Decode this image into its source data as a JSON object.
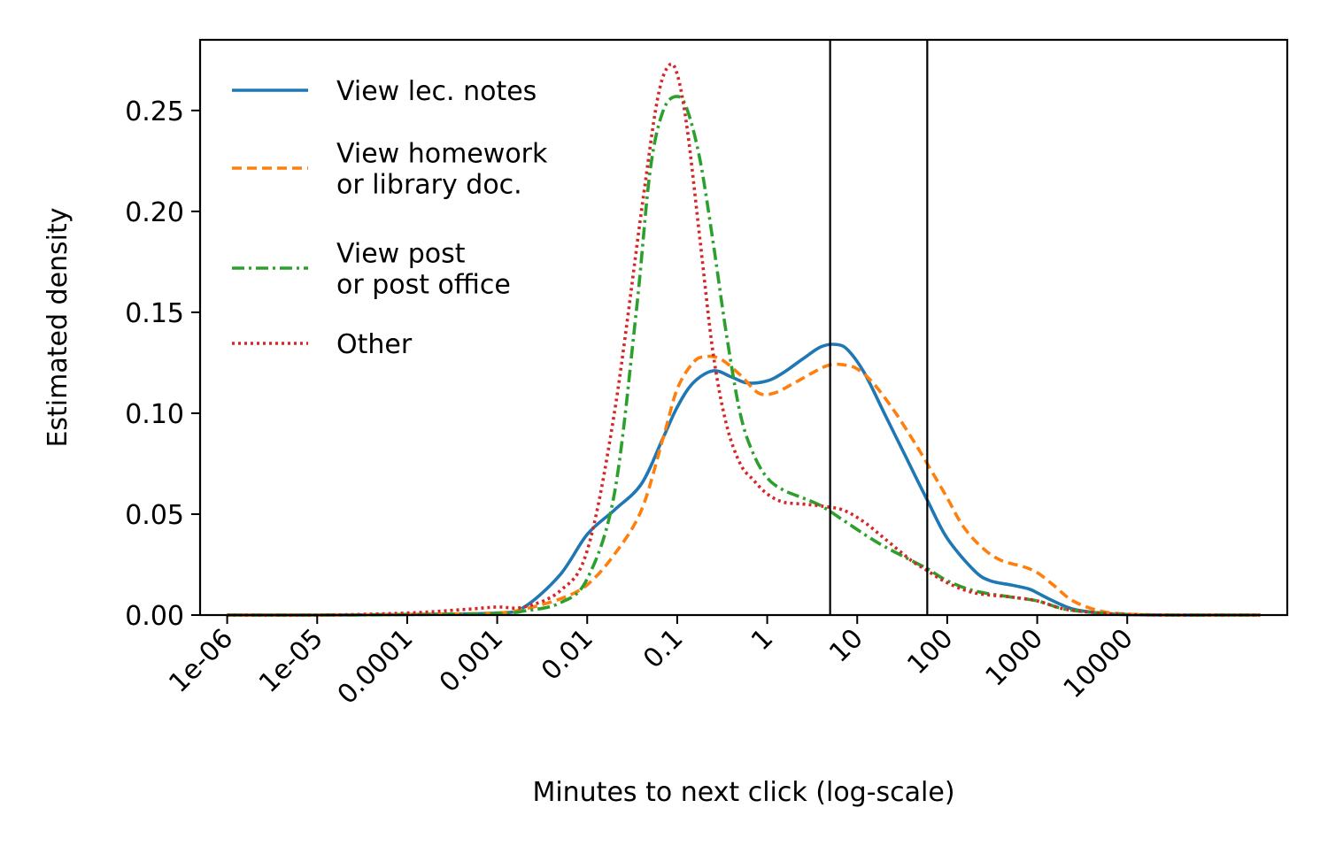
{
  "chart_data": {
    "type": "line",
    "xlabel": "Minutes to next click (log-scale)",
    "ylabel": "Estimated density",
    "x_scale": "log",
    "xlim": [
      5e-07,
      600000
    ],
    "ylim": [
      0,
      0.285
    ],
    "x_ticks": [
      {
        "value": 1e-06,
        "label": "1e-06"
      },
      {
        "value": 1e-05,
        "label": "1e-05"
      },
      {
        "value": 0.0001,
        "label": "0.0001"
      },
      {
        "value": 0.001,
        "label": "0.001"
      },
      {
        "value": 0.01,
        "label": "0.01"
      },
      {
        "value": 0.1,
        "label": "0.1"
      },
      {
        "value": 1,
        "label": "1"
      },
      {
        "value": 10,
        "label": "10"
      },
      {
        "value": 100,
        "label": "100"
      },
      {
        "value": 1000,
        "label": "1000"
      },
      {
        "value": 10000,
        "label": "10000"
      }
    ],
    "y_ticks": [
      {
        "value": 0.0,
        "label": "0.00"
      },
      {
        "value": 0.05,
        "label": "0.05"
      },
      {
        "value": 0.1,
        "label": "0.10"
      },
      {
        "value": 0.15,
        "label": "0.15"
      },
      {
        "value": 0.2,
        "label": "0.20"
      },
      {
        "value": 0.25,
        "label": "0.25"
      }
    ],
    "grid": false,
    "legend_position": "top-left",
    "vertical_lines": [
      5,
      60
    ],
    "series": [
      {
        "name": [
          "View lec. notes"
        ],
        "color": "#1f77b4",
        "dash": "solid",
        "x": [
          1e-06,
          1e-05,
          0.0001,
          0.001,
          0.002,
          0.005,
          0.01,
          0.02,
          0.04,
          0.07,
          0.1,
          0.15,
          0.25,
          0.4,
          0.6,
          1,
          1.5,
          2.5,
          4,
          6,
          8,
          12,
          20,
          35,
          60,
          100,
          200,
          300,
          500,
          800,
          1000,
          1500,
          2500,
          5000,
          10000,
          30000,
          100000,
          300000
        ],
        "y": [
          0,
          0,
          0.0003,
          0.001,
          0.004,
          0.02,
          0.04,
          0.052,
          0.065,
          0.088,
          0.103,
          0.115,
          0.121,
          0.118,
          0.115,
          0.116,
          0.12,
          0.127,
          0.133,
          0.134,
          0.131,
          0.12,
          0.1,
          0.078,
          0.057,
          0.038,
          0.022,
          0.017,
          0.015,
          0.013,
          0.011,
          0.007,
          0.003,
          0.001,
          0.0002,
          0,
          0,
          0
        ]
      },
      {
        "name": [
          "View homework",
          "or library doc."
        ],
        "color": "#ff7f0e",
        "dash": "11 6",
        "x": [
          1e-06,
          1e-05,
          0.0001,
          0.001,
          0.002,
          0.005,
          0.01,
          0.02,
          0.04,
          0.07,
          0.1,
          0.15,
          0.2,
          0.3,
          0.5,
          0.8,
          1.2,
          2,
          3.5,
          5,
          7,
          10,
          15,
          25,
          40,
          60,
          100,
          150,
          250,
          400,
          700,
          1000,
          1500,
          2500,
          5000,
          10000,
          30000,
          100000,
          300000
        ],
        "y": [
          0,
          0,
          0.0003,
          0.001,
          0.003,
          0.008,
          0.015,
          0.03,
          0.052,
          0.088,
          0.112,
          0.125,
          0.128,
          0.127,
          0.119,
          0.11,
          0.11,
          0.115,
          0.121,
          0.124,
          0.124,
          0.122,
          0.115,
          0.102,
          0.088,
          0.075,
          0.058,
          0.044,
          0.033,
          0.027,
          0.024,
          0.021,
          0.015,
          0.007,
          0.002,
          0.0005,
          0,
          0,
          0
        ]
      },
      {
        "name": [
          "View post",
          "or post office"
        ],
        "color": "#2ca02c",
        "dash": "14 5 3 5",
        "x": [
          1e-06,
          1e-05,
          0.0001,
          0.001,
          0.002,
          0.005,
          0.01,
          0.02,
          0.035,
          0.05,
          0.07,
          0.1,
          0.13,
          0.18,
          0.25,
          0.35,
          0.5,
          0.7,
          1,
          1.5,
          2.5,
          4,
          7,
          12,
          20,
          40,
          60,
          100,
          200,
          500,
          1000,
          2000,
          5000,
          10000,
          30000,
          100000,
          300000
        ],
        "y": [
          0,
          0,
          0.0002,
          0.0008,
          0.002,
          0.006,
          0.018,
          0.06,
          0.15,
          0.22,
          0.25,
          0.257,
          0.25,
          0.225,
          0.185,
          0.14,
          0.1,
          0.08,
          0.068,
          0.062,
          0.058,
          0.054,
          0.047,
          0.04,
          0.034,
          0.027,
          0.023,
          0.017,
          0.012,
          0.009,
          0.007,
          0.003,
          0.001,
          0.0003,
          0,
          0,
          0
        ]
      },
      {
        "name": [
          "Other"
        ],
        "color": "#d62728",
        "dash": "3 4",
        "x": [
          1e-06,
          1e-05,
          0.0001,
          0.0005,
          0.001,
          0.002,
          0.005,
          0.01,
          0.02,
          0.04,
          0.06,
          0.08,
          0.1,
          0.13,
          0.18,
          0.25,
          0.35,
          0.5,
          0.7,
          1,
          1.5,
          2.5,
          4,
          7,
          12,
          20,
          40,
          60,
          100,
          200,
          500,
          1000,
          2000,
          5000,
          10000,
          30000,
          100000,
          300000
        ],
        "y": [
          0,
          0,
          0.001,
          0.003,
          0.004,
          0.004,
          0.012,
          0.032,
          0.1,
          0.2,
          0.255,
          0.272,
          0.268,
          0.24,
          0.185,
          0.13,
          0.095,
          0.075,
          0.067,
          0.06,
          0.056,
          0.055,
          0.054,
          0.052,
          0.046,
          0.038,
          0.027,
          0.022,
          0.016,
          0.011,
          0.009,
          0.007,
          0.003,
          0.001,
          0.0003,
          0,
          0,
          0
        ]
      }
    ]
  }
}
